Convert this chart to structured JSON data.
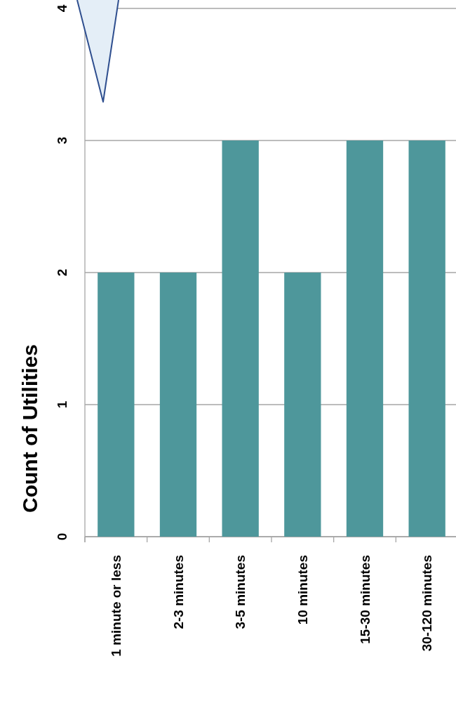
{
  "chart_data": {
    "type": "bar",
    "ylabel": "Count of Utilities",
    "categories": [
      "1 minute or less",
      "2-3 minutes",
      "3-5 minutes",
      "10 minutes",
      "15-30 minutes",
      "30-120 minutes"
    ],
    "values": [
      2,
      2,
      3,
      2,
      3,
      3
    ],
    "color": "#4e979b",
    "ylim": [
      0,
      4
    ],
    "yticks": [
      0,
      1,
      2,
      3,
      4
    ],
    "grid": "y"
  }
}
